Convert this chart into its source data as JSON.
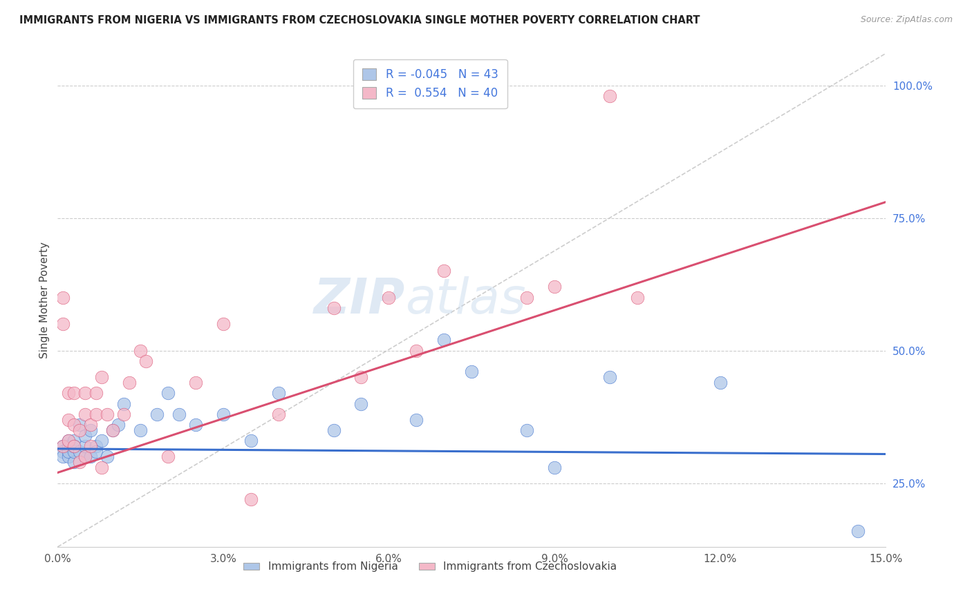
{
  "title": "IMMIGRANTS FROM NIGERIA VS IMMIGRANTS FROM CZECHOSLOVAKIA SINGLE MOTHER POVERTY CORRELATION CHART",
  "source": "Source: ZipAtlas.com",
  "ylabel": "Single Mother Poverty",
  "legend_label1": "Immigrants from Nigeria",
  "legend_label2": "Immigrants from Czechoslovakia",
  "R1": -0.045,
  "N1": 43,
  "R2": 0.554,
  "N2": 40,
  "color1": "#aec6e8",
  "color2": "#f4b8c8",
  "line_color1": "#3a6fcd",
  "line_color2": "#d94f70",
  "ref_line_color": "#c8c8c8",
  "background_color": "#ffffff",
  "grid_color": "#cccccc",
  "ytick_color": "#4477dd",
  "xlim": [
    0.0,
    0.15
  ],
  "ylim": [
    0.13,
    1.06
  ],
  "xticks": [
    0.0,
    0.03,
    0.06,
    0.09,
    0.12,
    0.15
  ],
  "xticklabels": [
    "0.0%",
    "3.0%",
    "6.0%",
    "9.0%",
    "12.0%",
    "15.0%"
  ],
  "yticks": [
    0.25,
    0.5,
    0.75,
    1.0
  ],
  "yticklabels": [
    "25.0%",
    "50.0%",
    "75.0%",
    "100.0%"
  ],
  "nigeria_x": [
    0.001,
    0.001,
    0.001,
    0.002,
    0.002,
    0.002,
    0.002,
    0.003,
    0.003,
    0.003,
    0.003,
    0.004,
    0.004,
    0.005,
    0.005,
    0.005,
    0.006,
    0.006,
    0.007,
    0.007,
    0.008,
    0.009,
    0.01,
    0.011,
    0.012,
    0.015,
    0.018,
    0.02,
    0.022,
    0.025,
    0.03,
    0.035,
    0.04,
    0.05,
    0.055,
    0.065,
    0.07,
    0.075,
    0.085,
    0.09,
    0.1,
    0.12,
    0.145
  ],
  "nigeria_y": [
    0.32,
    0.31,
    0.3,
    0.3,
    0.32,
    0.33,
    0.31,
    0.29,
    0.31,
    0.33,
    0.32,
    0.31,
    0.36,
    0.3,
    0.32,
    0.34,
    0.3,
    0.35,
    0.32,
    0.31,
    0.33,
    0.3,
    0.35,
    0.36,
    0.4,
    0.35,
    0.38,
    0.42,
    0.38,
    0.36,
    0.38,
    0.33,
    0.42,
    0.35,
    0.4,
    0.37,
    0.52,
    0.46,
    0.35,
    0.28,
    0.45,
    0.44,
    0.16
  ],
  "czech_x": [
    0.001,
    0.001,
    0.001,
    0.002,
    0.002,
    0.002,
    0.003,
    0.003,
    0.003,
    0.004,
    0.004,
    0.005,
    0.005,
    0.005,
    0.006,
    0.006,
    0.007,
    0.007,
    0.008,
    0.008,
    0.009,
    0.01,
    0.012,
    0.013,
    0.015,
    0.016,
    0.02,
    0.025,
    0.03,
    0.035,
    0.04,
    0.05,
    0.055,
    0.06,
    0.065,
    0.07,
    0.085,
    0.09,
    0.1,
    0.105
  ],
  "czech_y": [
    0.55,
    0.6,
    0.32,
    0.42,
    0.37,
    0.33,
    0.32,
    0.36,
    0.42,
    0.29,
    0.35,
    0.3,
    0.38,
    0.42,
    0.32,
    0.36,
    0.38,
    0.42,
    0.28,
    0.45,
    0.38,
    0.35,
    0.38,
    0.44,
    0.5,
    0.48,
    0.3,
    0.44,
    0.55,
    0.22,
    0.38,
    0.58,
    0.45,
    0.6,
    0.5,
    0.65,
    0.6,
    0.62,
    0.98,
    0.6
  ],
  "trend1_x0": 0.0,
  "trend1_x1": 0.15,
  "trend1_y0": 0.315,
  "trend1_y1": 0.305,
  "trend2_x0": 0.0,
  "trend2_x1": 0.15,
  "trend2_y0": 0.27,
  "trend2_y1": 0.78
}
